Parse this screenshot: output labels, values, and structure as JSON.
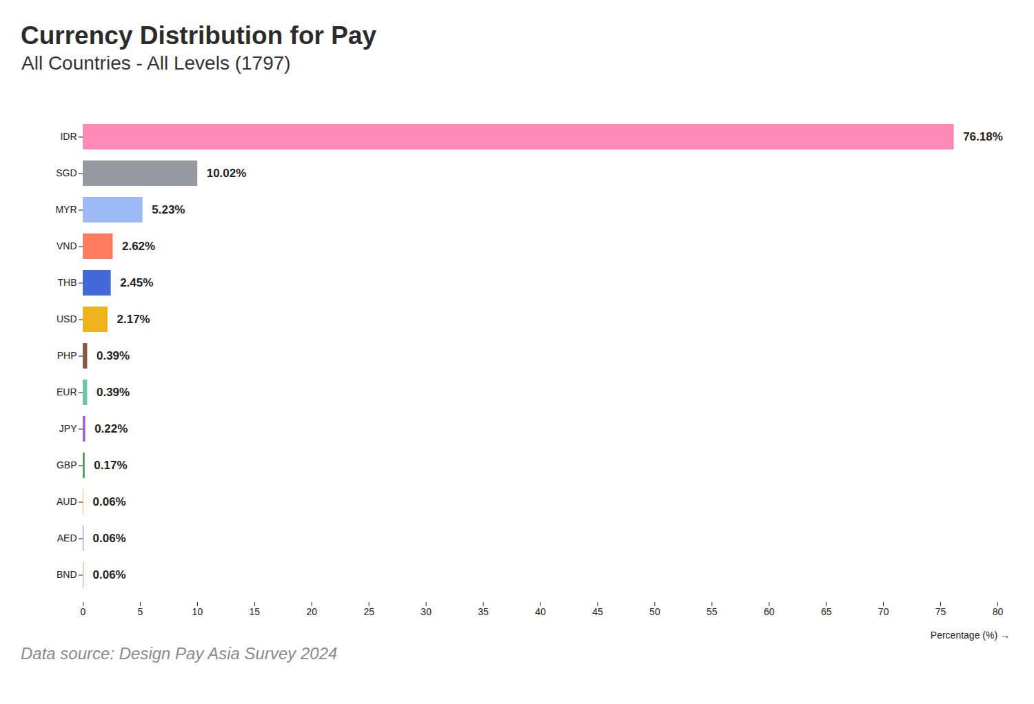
{
  "chart_data": {
    "type": "bar",
    "orientation": "horizontal",
    "title": "Currency Distribution for Pay",
    "subtitle": "All Countries - All Levels (1797)",
    "x_label": "Percentage (%) →",
    "caption": "Data source: Design Pay Asia Survey 2024",
    "categories": [
      "IDR",
      "SGD",
      "MYR",
      "VND",
      "THB",
      "USD",
      "PHP",
      "EUR",
      "JPY",
      "GBP",
      "AUD",
      "AED",
      "BND"
    ],
    "values": [
      76.18,
      10.02,
      5.23,
      2.62,
      2.45,
      2.17,
      0.39,
      0.39,
      0.22,
      0.17,
      0.06,
      0.06,
      0.06
    ],
    "value_labels": [
      "76.18%",
      "10.02%",
      "5.23%",
      "2.62%",
      "2.45%",
      "2.17%",
      "0.39%",
      "0.39%",
      "0.22%",
      "0.17%",
      "0.06%",
      "0.06%",
      "0.06%"
    ],
    "colors": [
      "#ff8ab4",
      "#959aa1",
      "#9cbaf5",
      "#ff7a5e",
      "#4169d8",
      "#efb31d",
      "#8b5a45",
      "#6cc6a7",
      "#a05de0",
      "#4a9e5c",
      "#f6b870",
      "#6a86d0",
      "#f08a8a"
    ],
    "xlim": [
      0,
      80
    ],
    "xticks": [
      0,
      5,
      10,
      15,
      20,
      25,
      30,
      35,
      40,
      45,
      50,
      55,
      60,
      65,
      70,
      75,
      80
    ],
    "data_labels": true,
    "grid": false
  }
}
